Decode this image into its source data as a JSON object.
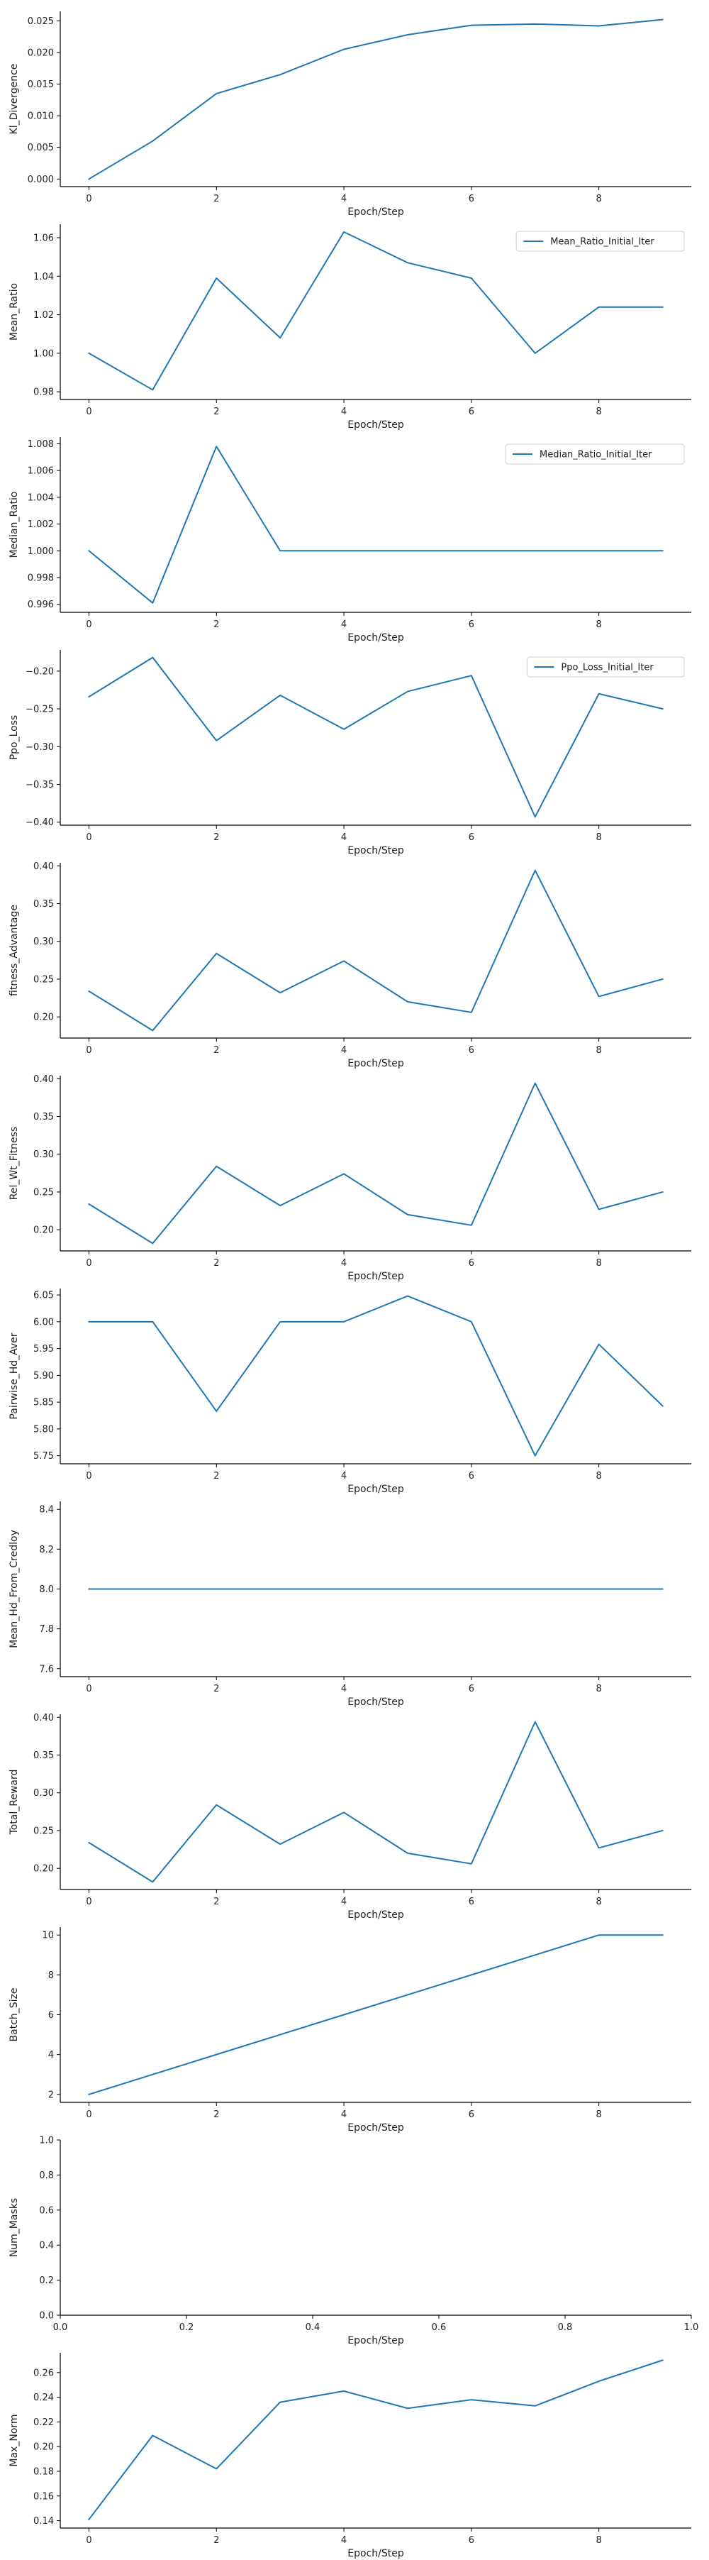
{
  "chart_data": [
    {
      "type": "line",
      "ylabel": "Kl_Divergence",
      "xlabel": "Epoch/Step",
      "x": [
        0,
        1,
        2,
        3,
        4,
        5,
        6,
        7,
        8,
        9
      ],
      "series": [
        {
          "values": [
            0.0,
            0.006,
            0.0135,
            0.0165,
            0.0205,
            0.0228,
            0.0243,
            0.0245,
            0.0242,
            0.0252
          ]
        }
      ],
      "xlim": [
        -0.45,
        9.45
      ],
      "ylim": [
        -0.0012,
        0.0265
      ],
      "xticks": [
        0,
        2,
        4,
        6,
        8
      ],
      "yticks": [
        0.0,
        0.005,
        0.01,
        0.015,
        0.02,
        0.025
      ],
      "yticklabels": [
        "0.000",
        "0.005",
        "0.010",
        "0.015",
        "0.020",
        "0.025"
      ],
      "xticklabels": [
        "0",
        "2",
        "4",
        "6",
        "8"
      ],
      "legend": null
    },
    {
      "type": "line",
      "ylabel": "Mean_Ratio",
      "xlabel": "Epoch/Step",
      "x": [
        0,
        1,
        2,
        3,
        4,
        5,
        6,
        7,
        8,
        9
      ],
      "series": [
        {
          "name": "Mean_Ratio_Initial_Iter",
          "values": [
            1.0,
            0.981,
            1.039,
            1.008,
            1.063,
            1.047,
            1.039,
            1.0,
            1.024,
            1.024
          ]
        }
      ],
      "xlim": [
        -0.45,
        9.45
      ],
      "ylim": [
        0.976,
        1.067
      ],
      "xticks": [
        0,
        2,
        4,
        6,
        8
      ],
      "yticks": [
        0.98,
        1.0,
        1.02,
        1.04,
        1.06
      ],
      "yticklabels": [
        "0.98",
        "1.00",
        "1.02",
        "1.04",
        "1.06"
      ],
      "xticklabels": [
        "0",
        "2",
        "4",
        "6",
        "8"
      ],
      "legend": "top-right"
    },
    {
      "type": "line",
      "ylabel": "Median_Ratio",
      "xlabel": "Epoch/Step",
      "x": [
        0,
        1,
        2,
        3,
        4,
        5,
        6,
        7,
        8,
        9
      ],
      "series": [
        {
          "name": "Median_Ratio_Initial_Iter",
          "values": [
            1.0,
            0.9961,
            1.0078,
            1.0,
            1.0,
            1.0,
            1.0,
            1.0,
            1.0,
            1.0
          ]
        }
      ],
      "xlim": [
        -0.45,
        9.45
      ],
      "ylim": [
        0.9954,
        1.0085
      ],
      "xticks": [
        0,
        2,
        4,
        6,
        8
      ],
      "yticks": [
        0.996,
        0.998,
        1.0,
        1.002,
        1.004,
        1.006,
        1.008
      ],
      "yticklabels": [
        "0.996",
        "0.998",
        "1.000",
        "1.002",
        "1.004",
        "1.006",
        "1.008"
      ],
      "xticklabels": [
        "0",
        "2",
        "4",
        "6",
        "8"
      ],
      "legend": "top-right"
    },
    {
      "type": "line",
      "ylabel": "Ppo_Loss",
      "xlabel": "Epoch/Step",
      "x": [
        0,
        1,
        2,
        3,
        4,
        5,
        6,
        7,
        8,
        9
      ],
      "series": [
        {
          "name": "Ppo_Loss_Initial_Iter",
          "values": [
            -0.234,
            -0.182,
            -0.292,
            -0.232,
            -0.277,
            -0.227,
            -0.206,
            -0.393,
            -0.23,
            -0.25
          ]
        }
      ],
      "xlim": [
        -0.45,
        9.45
      ],
      "ylim": [
        -0.404,
        -0.172
      ],
      "xticks": [
        0,
        2,
        4,
        6,
        8
      ],
      "yticks": [
        -0.4,
        -0.35,
        -0.3,
        -0.25,
        -0.2
      ],
      "yticklabels": [
        "−0.40",
        "−0.35",
        "−0.30",
        "−0.25",
        "−0.20"
      ],
      "xticklabels": [
        "0",
        "2",
        "4",
        "6",
        "8"
      ],
      "legend": "top-right"
    },
    {
      "type": "line",
      "ylabel": "fitness_Advantage",
      "xlabel": "Epoch/Step",
      "x": [
        0,
        1,
        2,
        3,
        4,
        5,
        6,
        7,
        8,
        9
      ],
      "series": [
        {
          "values": [
            0.234,
            0.182,
            0.284,
            0.232,
            0.274,
            0.22,
            0.206,
            0.394,
            0.227,
            0.25
          ]
        }
      ],
      "xlim": [
        -0.45,
        9.45
      ],
      "ylim": [
        0.172,
        0.404
      ],
      "xticks": [
        0,
        2,
        4,
        6,
        8
      ],
      "yticks": [
        0.2,
        0.25,
        0.3,
        0.35,
        0.4
      ],
      "yticklabels": [
        "0.20",
        "0.25",
        "0.30",
        "0.35",
        "0.40"
      ],
      "xticklabels": [
        "0",
        "2",
        "4",
        "6",
        "8"
      ],
      "legend": null
    },
    {
      "type": "line",
      "ylabel": "Rel_Wt_Fitness",
      "xlabel": "Epoch/Step",
      "x": [
        0,
        1,
        2,
        3,
        4,
        5,
        6,
        7,
        8,
        9
      ],
      "series": [
        {
          "values": [
            0.234,
            0.182,
            0.284,
            0.232,
            0.274,
            0.22,
            0.206,
            0.394,
            0.227,
            0.25
          ]
        }
      ],
      "xlim": [
        -0.45,
        9.45
      ],
      "ylim": [
        0.172,
        0.404
      ],
      "xticks": [
        0,
        2,
        4,
        6,
        8
      ],
      "yticks": [
        0.2,
        0.25,
        0.3,
        0.35,
        0.4
      ],
      "yticklabels": [
        "0.20",
        "0.25",
        "0.30",
        "0.35",
        "0.40"
      ],
      "xticklabels": [
        "0",
        "2",
        "4",
        "6",
        "8"
      ],
      "legend": null
    },
    {
      "type": "line",
      "ylabel": "Pairwise_Hd_Aver",
      "xlabel": "Epoch/Step",
      "x": [
        0,
        1,
        2,
        3,
        4,
        5,
        6,
        7,
        8,
        9
      ],
      "series": [
        {
          "values": [
            6.0,
            6.0,
            5.833,
            6.0,
            6.0,
            6.048,
            6.0,
            5.75,
            5.958,
            5.843
          ]
        }
      ],
      "xlim": [
        -0.45,
        9.45
      ],
      "ylim": [
        5.735,
        6.062
      ],
      "xticks": [
        0,
        2,
        4,
        6,
        8
      ],
      "yticks": [
        5.75,
        5.8,
        5.85,
        5.9,
        5.95,
        6.0,
        6.05
      ],
      "yticklabels": [
        "5.75",
        "5.80",
        "5.85",
        "5.90",
        "5.95",
        "6.00",
        "6.05"
      ],
      "xticklabels": [
        "0",
        "2",
        "4",
        "6",
        "8"
      ],
      "legend": null
    },
    {
      "type": "line",
      "ylabel": "Mean_Hd_From_Credloy",
      "xlabel": "Epoch/Step",
      "x": [
        0,
        1,
        2,
        3,
        4,
        5,
        6,
        7,
        8,
        9
      ],
      "series": [
        {
          "values": [
            8.0,
            8.0,
            8.0,
            8.0,
            8.0,
            8.0,
            8.0,
            8.0,
            8.0,
            8.0
          ]
        }
      ],
      "xlim": [
        -0.45,
        9.45
      ],
      "ylim": [
        7.56,
        8.44
      ],
      "xticks": [
        0,
        2,
        4,
        6,
        8
      ],
      "yticks": [
        7.6,
        7.8,
        8.0,
        8.2,
        8.4
      ],
      "yticklabels": [
        "7.6",
        "7.8",
        "8.0",
        "8.2",
        "8.4"
      ],
      "xticklabels": [
        "0",
        "2",
        "4",
        "6",
        "8"
      ],
      "legend": null
    },
    {
      "type": "line",
      "ylabel": "Total_Reward",
      "xlabel": "Epoch/Step",
      "x": [
        0,
        1,
        2,
        3,
        4,
        5,
        6,
        7,
        8,
        9
      ],
      "series": [
        {
          "values": [
            0.234,
            0.182,
            0.284,
            0.232,
            0.274,
            0.22,
            0.206,
            0.394,
            0.227,
            0.25
          ]
        }
      ],
      "xlim": [
        -0.45,
        9.45
      ],
      "ylim": [
        0.172,
        0.404
      ],
      "xticks": [
        0,
        2,
        4,
        6,
        8
      ],
      "yticks": [
        0.2,
        0.25,
        0.3,
        0.35,
        0.4
      ],
      "yticklabels": [
        "0.20",
        "0.25",
        "0.30",
        "0.35",
        "0.40"
      ],
      "xticklabels": [
        "0",
        "2",
        "4",
        "6",
        "8"
      ],
      "legend": null
    },
    {
      "type": "line",
      "ylabel": "Batch_Size",
      "xlabel": "Epoch/Step",
      "x": [
        0,
        1,
        2,
        3,
        4,
        5,
        6,
        7,
        8,
        9
      ],
      "series": [
        {
          "values": [
            2,
            3,
            4,
            5,
            6,
            7,
            8,
            9,
            10,
            10
          ]
        }
      ],
      "xlim": [
        -0.45,
        9.45
      ],
      "ylim": [
        1.6,
        10.4
      ],
      "xticks": [
        0,
        2,
        4,
        6,
        8
      ],
      "yticks": [
        2,
        4,
        6,
        8,
        10
      ],
      "yticklabels": [
        "2",
        "4",
        "6",
        "8",
        "10"
      ],
      "xticklabels": [
        "0",
        "2",
        "4",
        "6",
        "8"
      ],
      "legend": null
    },
    {
      "type": "line",
      "ylabel": "Num_Masks",
      "xlabel": "Epoch/Step",
      "x": [],
      "series": [],
      "xlim": [
        0,
        1
      ],
      "ylim": [
        0,
        1
      ],
      "xticks": [
        0,
        0.2,
        0.4,
        0.6,
        0.8,
        1.0
      ],
      "yticks": [
        0,
        0.2,
        0.4,
        0.6,
        0.8,
        1.0
      ],
      "yticklabels": [
        "0.0",
        "0.2",
        "0.4",
        "0.6",
        "0.8",
        "1.0"
      ],
      "xticklabels": [
        "0.0",
        "0.2",
        "0.4",
        "0.6",
        "0.8",
        "1.0"
      ],
      "legend": null
    },
    {
      "type": "line",
      "ylabel": "Max_Norm",
      "xlabel": "Epoch/Step",
      "x": [
        0,
        1,
        2,
        3,
        4,
        5,
        6,
        7,
        8,
        9
      ],
      "series": [
        {
          "values": [
            0.141,
            0.209,
            0.182,
            0.236,
            0.245,
            0.231,
            0.238,
            0.233,
            0.253,
            0.27
          ]
        }
      ],
      "xlim": [
        -0.45,
        9.45
      ],
      "ylim": [
        0.134,
        0.276
      ],
      "xticks": [
        0,
        2,
        4,
        6,
        8
      ],
      "yticks": [
        0.14,
        0.16,
        0.18,
        0.2,
        0.22,
        0.24,
        0.26
      ],
      "yticklabels": [
        "0.14",
        "0.16",
        "0.18",
        "0.20",
        "0.22",
        "0.24",
        "0.26"
      ],
      "xticklabels": [
        "0",
        "2",
        "4",
        "6",
        "8"
      ],
      "legend": null
    }
  ],
  "colors": {
    "line": "#1f77b4",
    "axis": "#000000",
    "text": "#222222"
  }
}
